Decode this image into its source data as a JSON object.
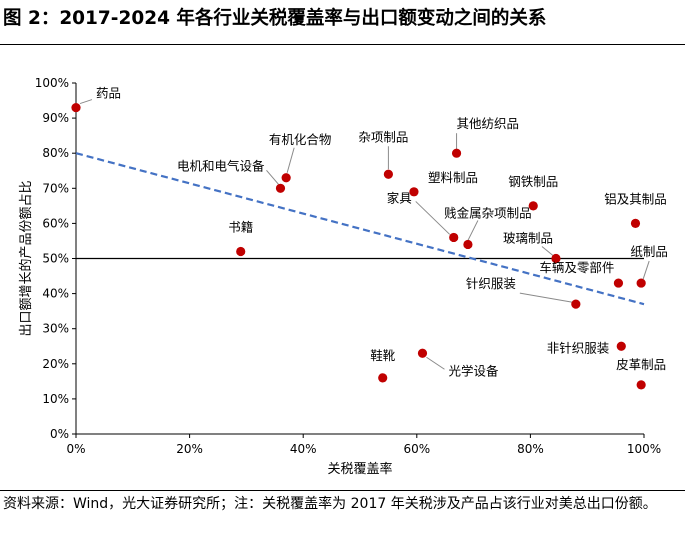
{
  "figure": {
    "title": "图 2：2017-2024 年各行业关税覆盖率与出口额变动之间的关系",
    "source_note": "资料来源：Wind，光大证券研究所；注：关税覆盖率为 2017 年关税涉及产品占该行业对美总出口份额。"
  },
  "chart_data": {
    "type": "scatter",
    "title": "2017-2024 年各行业关税覆盖率与出口额变动之间的关系",
    "xlabel": "关税覆盖率",
    "ylabel": "出口额增长的产品份额占比",
    "xlim": [
      0,
      1
    ],
    "ylim": [
      0,
      1
    ],
    "xticks": [
      0,
      0.2,
      0.4,
      0.6,
      0.8,
      1.0
    ],
    "xtick_labels": [
      "0%",
      "20%",
      "40%",
      "60%",
      "80%",
      "100%"
    ],
    "yticks": [
      0,
      0.1,
      0.2,
      0.3,
      0.4,
      0.5,
      0.6,
      0.7,
      0.8,
      0.9,
      1.0
    ],
    "ytick_labels": [
      "0%",
      "10%",
      "20%",
      "30%",
      "40%",
      "50%",
      "60%",
      "70%",
      "80%",
      "90%",
      "100%"
    ],
    "reference_line_y": 0.5,
    "trendline": {
      "x": [
        0,
        1
      ],
      "y": [
        0.8,
        0.37
      ],
      "style": "dashed",
      "color": "#4472C4"
    },
    "marker_color": "#C00000",
    "points": [
      {
        "name": "药品",
        "x": 0.0,
        "y": 0.93
      },
      {
        "name": "书籍",
        "x": 0.29,
        "y": 0.52
      },
      {
        "name": "电机和电气设备",
        "x": 0.36,
        "y": 0.7
      },
      {
        "name": "有机化合物",
        "x": 0.37,
        "y": 0.73
      },
      {
        "name": "杂项制品",
        "x": 0.55,
        "y": 0.74
      },
      {
        "name": "鞋靴",
        "x": 0.54,
        "y": 0.16
      },
      {
        "name": "塑料制品",
        "x": 0.595,
        "y": 0.69
      },
      {
        "name": "光学设备",
        "x": 0.61,
        "y": 0.23
      },
      {
        "name": "家具",
        "x": 0.665,
        "y": 0.56
      },
      {
        "name": "其他纺织品",
        "x": 0.67,
        "y": 0.8
      },
      {
        "name": "贱金属杂项制品",
        "x": 0.69,
        "y": 0.54
      },
      {
        "name": "钢铁制品",
        "x": 0.805,
        "y": 0.65
      },
      {
        "name": "玻璃制品",
        "x": 0.845,
        "y": 0.5
      },
      {
        "name": "针织服装",
        "x": 0.88,
        "y": 0.37
      },
      {
        "name": "车辆及零部件",
        "x": 0.955,
        "y": 0.43
      },
      {
        "name": "非针织服装",
        "x": 0.96,
        "y": 0.25
      },
      {
        "name": "铝及其制品",
        "x": 0.985,
        "y": 0.6
      },
      {
        "name": "纸制品",
        "x": 0.995,
        "y": 0.43
      },
      {
        "name": "皮革制品",
        "x": 0.995,
        "y": 0.14
      }
    ]
  }
}
